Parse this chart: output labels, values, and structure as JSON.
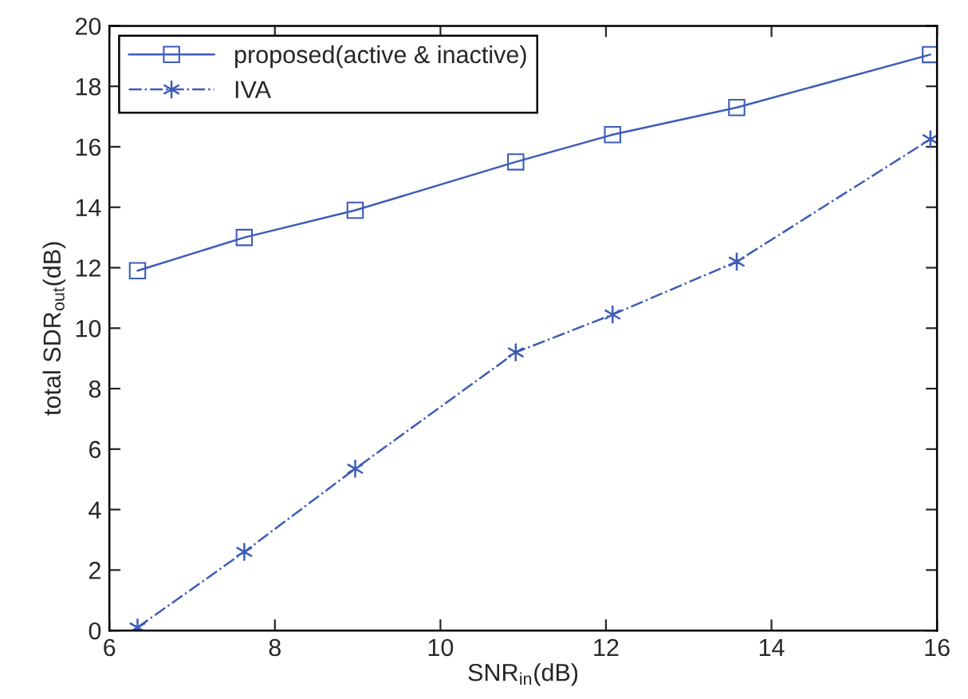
{
  "chart_data": {
    "type": "line",
    "xlabel": "SNR$_{in}$(dB)",
    "ylabel": "total SDR$_{out}$(dB)",
    "x": [
      6.34,
      7.63,
      8.97,
      10.91,
      12.08,
      13.58,
      15.92
    ],
    "series": [
      {
        "name": "proposed(active & inactive)",
        "color": "#3d5cb8",
        "marker": "square",
        "line_style": "solid",
        "values": [
          11.9,
          13.0,
          13.9,
          15.5,
          16.4,
          17.3,
          19.05
        ]
      },
      {
        "name": "IVA",
        "color": "#3d5cb8",
        "marker": "cross",
        "line_style": "dashdot",
        "values": [
          0.1,
          2.6,
          5.35,
          9.2,
          10.45,
          12.2,
          16.25
        ]
      }
    ],
    "xlim": [
      6,
      16
    ],
    "xticks": [
      6,
      8,
      10,
      12,
      14,
      16
    ],
    "ylim": [
      0,
      20
    ],
    "yticks": [
      0,
      2,
      4,
      6,
      8,
      10,
      12,
      14,
      16,
      18,
      20
    ],
    "grid": false,
    "legend": "top left"
  }
}
